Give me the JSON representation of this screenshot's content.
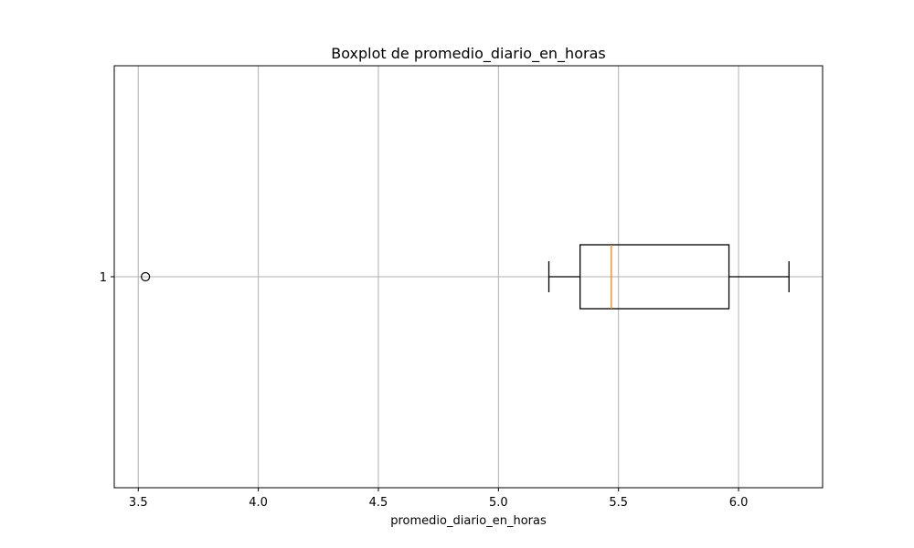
{
  "chart_data": {
    "type": "boxplot",
    "orientation": "horizontal",
    "title": "Boxplot de promedio_diario_en_horas",
    "xlabel": "promedio_diario_en_horas",
    "ylabel": "",
    "xlim": [
      3.4,
      6.35
    ],
    "xticks": [
      3.5,
      4.0,
      4.5,
      5.0,
      5.5,
      6.0
    ],
    "xtick_labels": [
      "3.5",
      "4.0",
      "4.5",
      "5.0",
      "5.5",
      "6.0"
    ],
    "categories": [
      "1"
    ],
    "boxes": [
      {
        "label": "1",
        "whisker_low": 5.21,
        "q1": 5.34,
        "median": 5.47,
        "q3": 5.96,
        "whisker_high": 6.21,
        "outliers": [
          3.53
        ]
      }
    ],
    "grid": true,
    "colors": {
      "box": "#000000",
      "median": "#ff7f0e",
      "grid": "#b0b0b0"
    }
  }
}
